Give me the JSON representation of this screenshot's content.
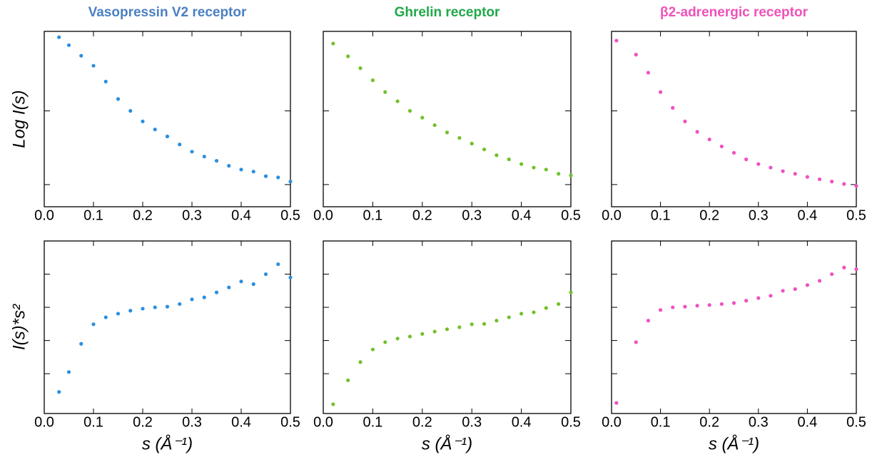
{
  "chart_data": [
    {
      "type": "scatter",
      "title": "Vasopressin V2 receptor",
      "title_color": "#4a7fc1",
      "ylabel": "Log I(s)",
      "log_y": true,
      "color": "#2a8fe0",
      "x": [
        0.03,
        0.05,
        0.075,
        0.1,
        0.125,
        0.15,
        0.175,
        0.2,
        0.225,
        0.25,
        0.275,
        0.3,
        0.325,
        0.35,
        0.375,
        0.4,
        0.425,
        0.45,
        0.475,
        0.5
      ],
      "values": [
        1.0,
        0.78,
        0.56,
        0.41,
        0.25,
        0.145,
        0.1,
        0.072,
        0.056,
        0.045,
        0.035,
        0.028,
        0.024,
        0.021,
        0.018,
        0.016,
        0.015,
        0.013,
        0.0125,
        0.011
      ],
      "xlim": [
        0,
        0.5
      ],
      "xticks": [
        {
          "value": 0,
          "label": "0.0"
        },
        0.1,
        0.2,
        0.3,
        0.4,
        0.5
      ],
      "ylim": [
        0.005,
        1.2
      ],
      "yticks": [
        0.01,
        0.1
      ]
    },
    {
      "type": "scatter",
      "title": "Ghrelin receptor",
      "title_color": "#21a84a",
      "log_y": true,
      "color": "#72c02c",
      "x": [
        0.02,
        0.05,
        0.075,
        0.1,
        0.125,
        0.15,
        0.175,
        0.2,
        0.225,
        0.25,
        0.275,
        0.3,
        0.325,
        0.35,
        0.375,
        0.4,
        0.425,
        0.45,
        0.475,
        0.5
      ],
      "values": [
        0.82,
        0.55,
        0.38,
        0.26,
        0.18,
        0.135,
        0.1,
        0.081,
        0.064,
        0.051,
        0.043,
        0.036,
        0.03,
        0.025,
        0.022,
        0.019,
        0.017,
        0.016,
        0.014,
        0.0133
      ],
      "xlim": [
        0,
        0.5
      ],
      "xticks": [
        {
          "value": 0,
          "label": "0.0"
        },
        0.1,
        0.2,
        0.3,
        0.4,
        0.5
      ],
      "ylim": [
        0.005,
        1.2
      ],
      "yticks": [
        0.01,
        0.1
      ]
    },
    {
      "type": "scatter",
      "title": "β2-adrenergic receptor",
      "title_color": "#ee52b8",
      "log_y": true,
      "color": "#f050c0",
      "x": [
        0.01,
        0.05,
        0.075,
        0.1,
        0.125,
        0.15,
        0.175,
        0.2,
        0.225,
        0.25,
        0.275,
        0.3,
        0.325,
        0.35,
        0.375,
        0.4,
        0.425,
        0.45,
        0.475,
        0.5
      ],
      "values": [
        0.9,
        0.58,
        0.33,
        0.18,
        0.11,
        0.072,
        0.052,
        0.041,
        0.033,
        0.027,
        0.022,
        0.019,
        0.017,
        0.0152,
        0.014,
        0.0127,
        0.0118,
        0.011,
        0.0102,
        0.0096
      ],
      "xlim": [
        0,
        0.5
      ],
      "xticks": [
        {
          "value": 0,
          "label": "0.0"
        },
        0.1,
        0.2,
        0.3,
        0.4,
        0.5
      ],
      "ylim": [
        0.005,
        1.2
      ],
      "yticks": [
        0.01,
        0.1
      ]
    },
    {
      "type": "scatter",
      "ylabel": "I(s)*s²",
      "xlabel": "s (Å⁻¹)",
      "log_y": false,
      "color": "#2a8fe0",
      "x": [
        0.03,
        0.05,
        0.075,
        0.1,
        0.125,
        0.15,
        0.175,
        0.2,
        0.225,
        0.25,
        0.275,
        0.3,
        0.325,
        0.35,
        0.375,
        0.4,
        0.425,
        0.45,
        0.475,
        0.5
      ],
      "values": [
        0.45,
        1.05,
        1.9,
        2.49,
        2.7,
        2.81,
        2.9,
        2.96,
        3.0,
        3.02,
        3.1,
        3.24,
        3.3,
        3.45,
        3.6,
        3.78,
        3.7,
        4.0,
        4.3,
        3.9
      ],
      "xlim": [
        0,
        0.5
      ],
      "xticks": [
        {
          "value": 0,
          "label": "0.0"
        },
        0.1,
        0.2,
        0.3,
        0.4,
        0.5
      ],
      "ylim": [
        -0.2,
        5
      ],
      "yticks": [
        1,
        2,
        3,
        4
      ]
    },
    {
      "type": "scatter",
      "xlabel": "s (Å⁻¹)",
      "log_y": false,
      "color": "#72c02c",
      "x": [
        0.02,
        0.05,
        0.075,
        0.1,
        0.125,
        0.15,
        0.175,
        0.2,
        0.225,
        0.25,
        0.275,
        0.3,
        0.325,
        0.35,
        0.375,
        0.4,
        0.425,
        0.45,
        0.475,
        0.5
      ],
      "values": [
        0.08,
        0.8,
        1.35,
        1.73,
        1.95,
        2.06,
        2.12,
        2.2,
        2.27,
        2.34,
        2.4,
        2.49,
        2.5,
        2.6,
        2.7,
        2.81,
        2.85,
        2.98,
        3.1,
        3.45
      ],
      "xlim": [
        0,
        0.5
      ],
      "xticks": [
        {
          "value": 0,
          "label": "0.0"
        },
        0.1,
        0.2,
        0.3,
        0.4,
        0.5
      ],
      "ylim": [
        -0.2,
        5
      ],
      "yticks": [
        1,
        2,
        3,
        4
      ]
    },
    {
      "type": "scatter",
      "xlabel": "s (Å⁻¹)",
      "log_y": false,
      "color": "#f050c0",
      "x": [
        0.01,
        0.05,
        0.075,
        0.1,
        0.125,
        0.15,
        0.175,
        0.2,
        0.225,
        0.25,
        0.275,
        0.3,
        0.325,
        0.35,
        0.375,
        0.4,
        0.425,
        0.45,
        0.475,
        0.5
      ],
      "values": [
        0.12,
        1.95,
        2.6,
        2.92,
        3.0,
        3.02,
        3.05,
        3.07,
        3.1,
        3.13,
        3.2,
        3.28,
        3.35,
        3.5,
        3.55,
        3.67,
        3.8,
        4.0,
        4.2,
        4.15
      ],
      "xlim": [
        0,
        0.5
      ],
      "xticks": [
        {
          "value": 0,
          "label": "0.0"
        },
        0.1,
        0.2,
        0.3,
        0.4,
        0.5
      ],
      "ylim": [
        -0.2,
        5
      ],
      "yticks": [
        1,
        2,
        3,
        4
      ]
    }
  ]
}
